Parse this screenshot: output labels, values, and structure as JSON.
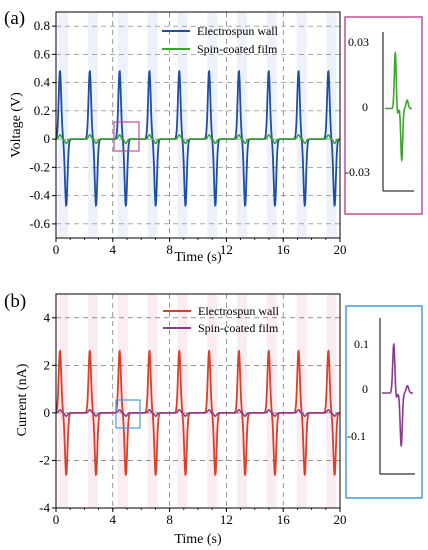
{
  "panels": [
    {
      "tag": "(a)",
      "inset_ticks": [
        "0.03",
        "0",
        "-0.03"
      ]
    },
    {
      "tag": "(b)",
      "inset_ticks": [
        "0.1",
        "0",
        "-0.1"
      ]
    }
  ],
  "colors": {
    "electrospun_a": "#1f4fa3",
    "spin_a": "#3aa52a",
    "inset_a_border": "#c0509a",
    "electrospun_b": "#d9402a",
    "spin_b": "#8a3a8e",
    "inset_b_border": "#4a9ad6",
    "shade_a": "#dfe7f5",
    "shade_b": "#f7dde6"
  },
  "chart_data": [
    {
      "type": "line",
      "title": "",
      "xlabel": "Time (s)",
      "ylabel": "Voltage (V)",
      "xlim": [
        0,
        20
      ],
      "ylim": [
        -0.7,
        0.9
      ],
      "x_ticks": [
        "0",
        "4",
        "8",
        "12",
        "16",
        "20"
      ],
      "y_ticks": [
        "0.8",
        "0.6",
        "0.4",
        "0.2",
        "0",
        "-0.2",
        "-0.4",
        "-0.6"
      ],
      "grid": true,
      "legend_position": "top-center",
      "series": [
        {
          "name": "Electrospun wall",
          "pulse_times_s": [
            0.5,
            2.6,
            4.7,
            6.8,
            8.9,
            11.0,
            13.1,
            15.2,
            17.3,
            19.4
          ],
          "peak_positive": 0.48,
          "peak_negative": -0.47
        },
        {
          "name": "Spin-coated film",
          "pulse_times_s": [
            0.5,
            2.6,
            4.7,
            6.8,
            8.9,
            11.0,
            13.1,
            15.2,
            17.3,
            19.4
          ],
          "peak_positive": 0.03,
          "peak_negative": -0.03
        }
      ],
      "inset": {
        "series": "Spin-coated film",
        "ylim": [
          -0.04,
          0.04
        ],
        "y_ticks": [
          0.03,
          0,
          -0.03
        ],
        "peak_positive": 0.029,
        "peak_negative": -0.027
      }
    },
    {
      "type": "line",
      "title": "",
      "xlabel": "Time (s)",
      "ylabel": "Current (nA)",
      "xlim": [
        0,
        20
      ],
      "ylim": [
        -4,
        5
      ],
      "x_ticks": [
        "0",
        "4",
        "8",
        "12",
        "16",
        "20"
      ],
      "y_ticks": [
        "4",
        "2",
        "0",
        "-2",
        "-4"
      ],
      "grid": true,
      "legend_position": "top-center",
      "series": [
        {
          "name": "Electrospun wall",
          "pulse_times_s": [
            0.5,
            2.6,
            4.7,
            6.8,
            8.9,
            11.0,
            13.1,
            15.2,
            17.3,
            19.4
          ],
          "peak_positive": 2.6,
          "peak_negative": -2.6
        },
        {
          "name": "Spin-coated film",
          "pulse_times_s": [
            0.5,
            2.6,
            4.7,
            6.8,
            8.9,
            11.0,
            13.1,
            15.2,
            17.3,
            19.4
          ],
          "peak_positive": 0.13,
          "peak_negative": -0.14
        }
      ],
      "inset": {
        "series": "Spin-coated film",
        "ylim": [
          -0.2,
          0.2
        ],
        "y_ticks": [
          0.1,
          0,
          -0.1
        ],
        "peak_positive": 0.13,
        "peak_negative": -0.14
      }
    }
  ]
}
